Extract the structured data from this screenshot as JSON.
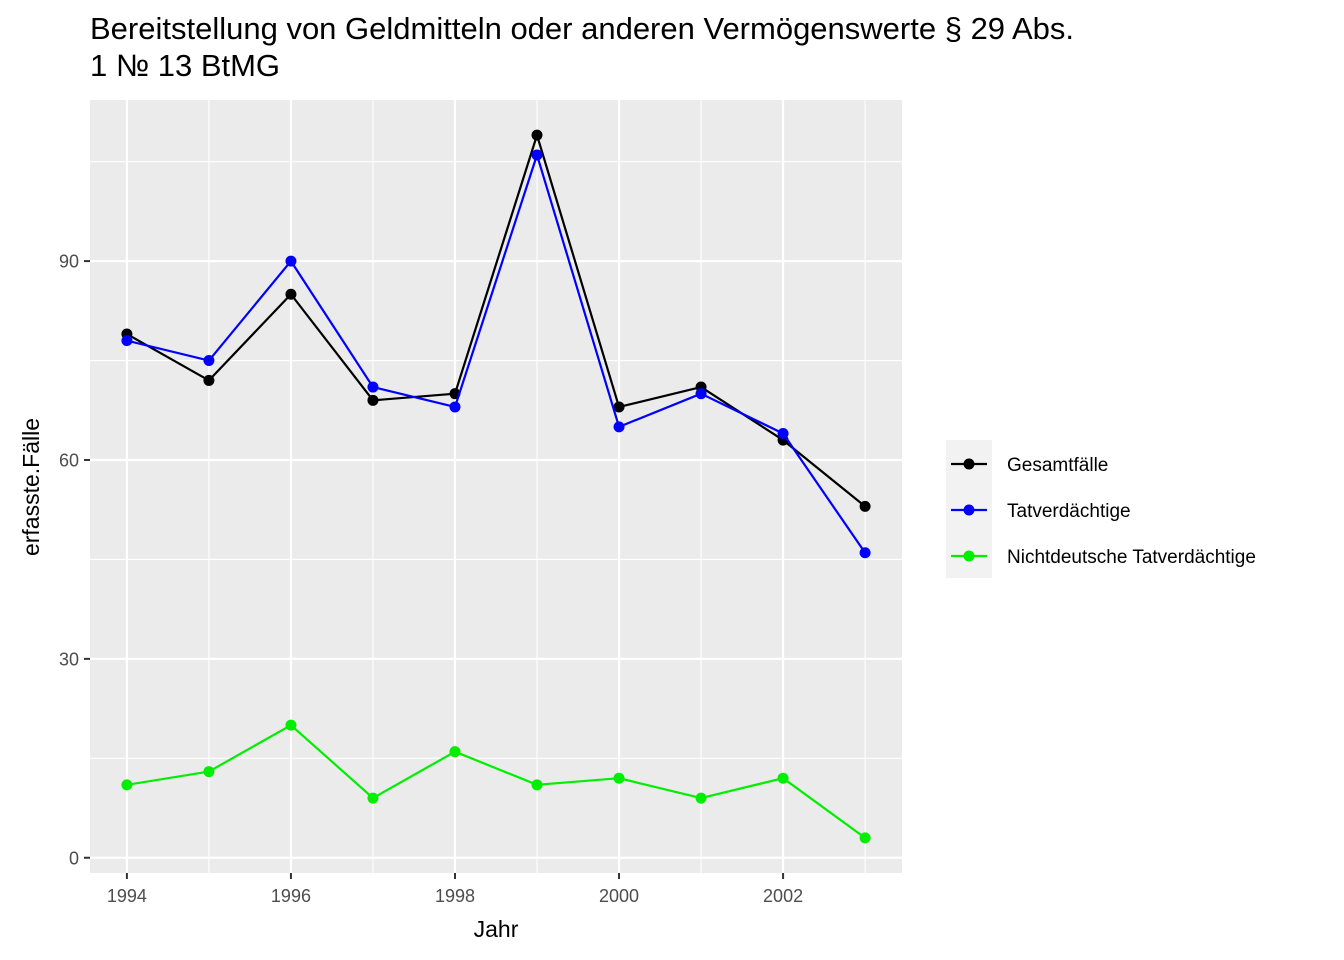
{
  "chart_data": {
    "type": "line",
    "title": "Bereitstellung von Geldmitteln oder anderen Vermögenswerte § 29 Abs. 1 № 13 BtMG",
    "xlabel": "Jahr",
    "ylabel": "erfasste.Fälle",
    "x": [
      1994,
      1995,
      1996,
      1997,
      1998,
      1999,
      2000,
      2001,
      2002,
      2003
    ],
    "xlim": [
      1993.55,
      2003.45
    ],
    "ylim": [
      -2.3,
      114.3
    ],
    "x_ticks": [
      "1994",
      "1996",
      "1998",
      "2000",
      "2002"
    ],
    "y_ticks": [
      "0",
      "30",
      "60",
      "90"
    ],
    "grid": true,
    "legend_position": "right",
    "series": [
      {
        "name": "Gesamtfälle",
        "color": "#000000",
        "values": [
          79,
          72,
          85,
          69,
          70,
          109,
          68,
          71,
          63,
          53
        ]
      },
      {
        "name": "Tatverdächtige",
        "color": "#0000ff",
        "values": [
          78,
          75,
          90,
          71,
          68,
          106,
          65,
          70,
          64,
          46
        ]
      },
      {
        "name": "Nichtdeutsche Tatverdächtige",
        "color": "#00ee00",
        "values": [
          11,
          13,
          20,
          9,
          16,
          11,
          12,
          9,
          12,
          3
        ]
      }
    ]
  }
}
